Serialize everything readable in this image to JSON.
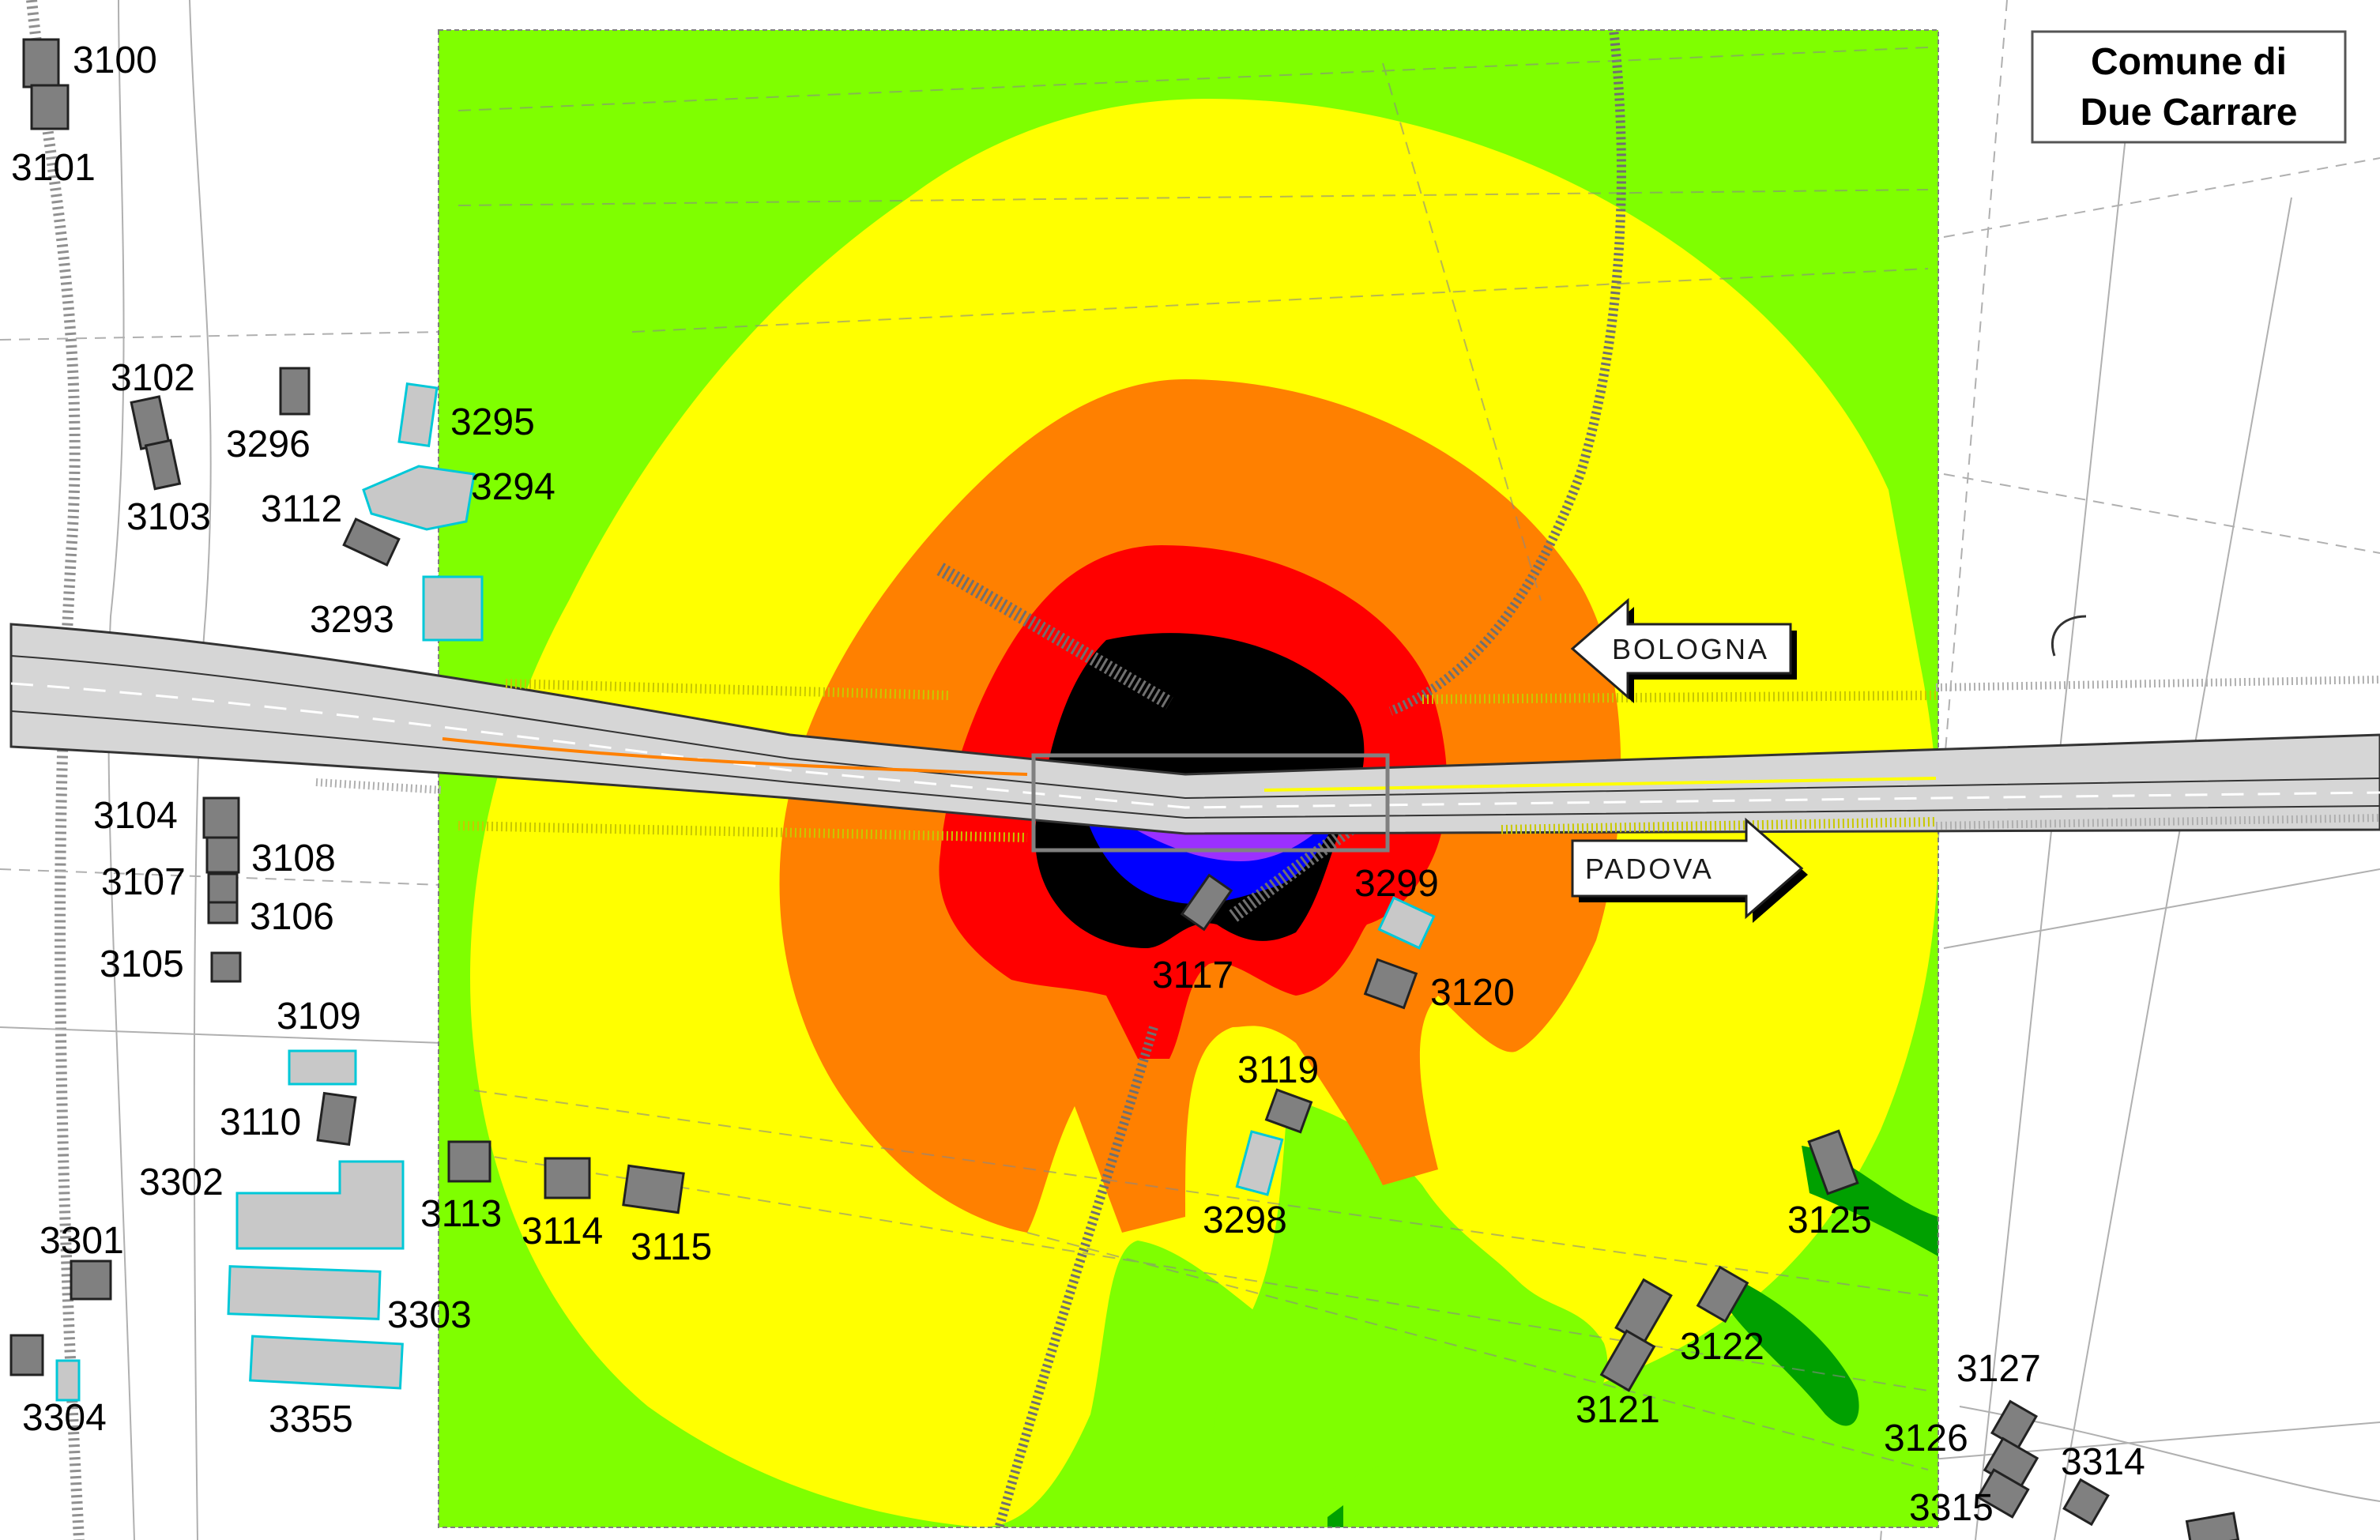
{
  "title": {
    "line1": "Comune di",
    "line2": "Due Carrare"
  },
  "directions": {
    "west": "BOLOGNA",
    "east": "PADOVA"
  },
  "zone_colors": {
    "outer": "#7fff00",
    "yellow": "#ffff00",
    "orange": "#ff8000",
    "red": "#ff0000",
    "black": "#000000",
    "blue": "#0000ff",
    "purple": "#9b30ff",
    "dark_green": "#00a000"
  },
  "building_fill": "#808080",
  "receptor_labels": {
    "3100": "3100",
    "3101": "3101",
    "3102": "3102",
    "3103": "3103",
    "3104": "3104",
    "3105": "3105",
    "3106": "3106",
    "3107": "3107",
    "3108": "3108",
    "3109": "3109",
    "3110": "3110",
    "3112": "3112",
    "3113": "3113",
    "3114": "3114",
    "3115": "3115",
    "3117": "3117",
    "3119": "3119",
    "3120": "3120",
    "3121": "3121",
    "3122": "3122",
    "3125": "3125",
    "3126": "3126",
    "3127": "3127",
    "3293": "3293",
    "3294": "3294",
    "3295": "3295",
    "3296": "3296",
    "3298": "3298",
    "3299": "3299",
    "3301": "3301",
    "3302": "3302",
    "3303": "3303",
    "3304": "3304",
    "3314": "3314",
    "3315": "3315",
    "3355": "3355"
  }
}
